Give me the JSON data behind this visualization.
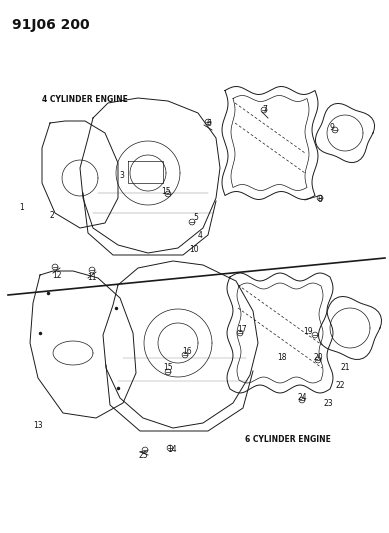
{
  "title": "91J06 200",
  "label_4cyl": "4 CYLINDER ENGINE",
  "label_6cyl": "6 CYLINDER ENGINE",
  "bg_color": "#ffffff",
  "line_color": "#1a1a1a",
  "text_color": "#111111",
  "title_fontsize": 10,
  "label_fontsize": 5.5,
  "number_fontsize": 5.5,
  "figsize": [
    3.89,
    5.33
  ],
  "dpi": 100
}
